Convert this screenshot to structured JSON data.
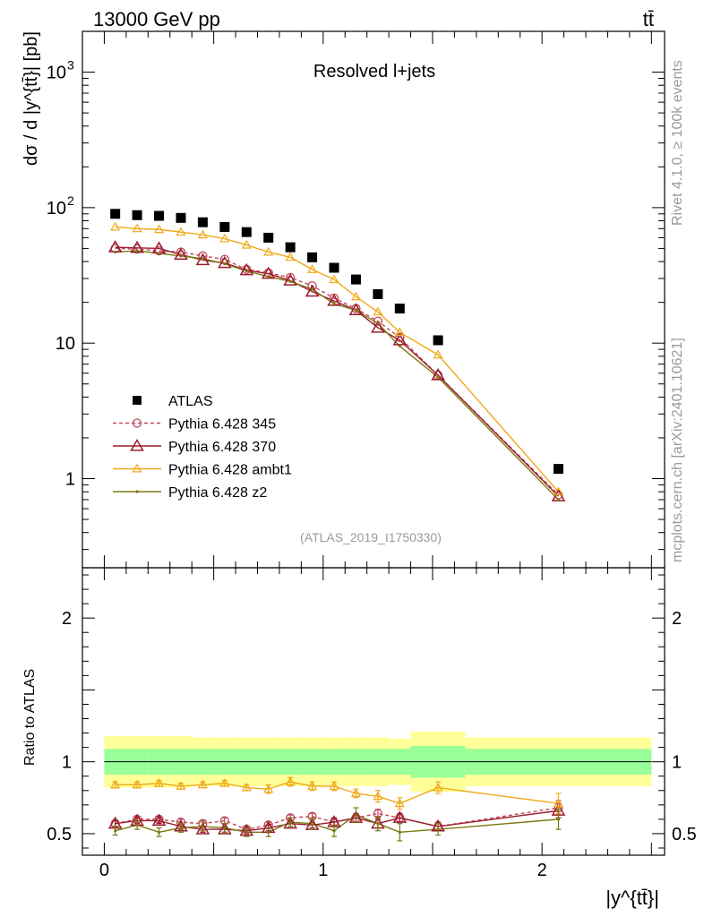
{
  "header": {
    "energy_label": "13000 GeV pp",
    "process_label": "tt̄"
  },
  "side": {
    "rivet_label": "Rivet 4.1.0, ≥ 100k events",
    "mcplots_label": "mcplots.cern.ch [arXiv:2401.10621]"
  },
  "colors": {
    "atlas": "#000000",
    "p345": "#c0485a",
    "p370": "#9a1c2e",
    "ambt1": "#f0a818",
    "z2": "#7a7a10",
    "band_yellow": "#ffff99",
    "band_green": "#99ff99"
  },
  "chart_data": {
    "type": "scatter",
    "title": "Resolved l+jets",
    "analysis_id": "(ATLAS_2019_I1750330)",
    "xlabel": "|y^{tt̄}|",
    "ylabel": "dσ / d |y^{tt̄}| [pb]",
    "ratio_ylabel": "Ratio to ATLAS",
    "xlim": [
      -0.1,
      2.56
    ],
    "ylim_main": [
      0.22,
      2000
    ],
    "ylim_ratio": [
      0.35,
      2.35
    ],
    "y_scale_main": "log",
    "x_ticks": [
      0,
      1,
      2
    ],
    "x_tick_labels": [
      "0",
      "1",
      "2"
    ],
    "main_y_tick_labels": [
      {
        "value": 1000,
        "base": "10",
        "exp": "3"
      },
      {
        "value": 100,
        "base": "10",
        "exp": "2"
      },
      {
        "value": 10,
        "text": "10"
      },
      {
        "value": 1,
        "text": "1"
      }
    ],
    "ratio_y_ticks": [
      0.5,
      1,
      2
    ],
    "ratio_y_tick_labels": [
      "0.5",
      "1",
      "2"
    ],
    "legend_position": "lower-left",
    "legend": [
      {
        "key": "atlas",
        "label": "ATLAS"
      },
      {
        "key": "p345",
        "label": "Pythia 6.428 345"
      },
      {
        "key": "p370",
        "label": "Pythia 6.428 370"
      },
      {
        "key": "ambt1",
        "label": "Pythia 6.428 ambt1"
      },
      {
        "key": "z2",
        "label": "Pythia 6.428 z2"
      }
    ],
    "bins": [
      [
        0,
        0.1
      ],
      [
        0.1,
        0.2
      ],
      [
        0.2,
        0.3
      ],
      [
        0.3,
        0.4
      ],
      [
        0.4,
        0.5
      ],
      [
        0.5,
        0.6
      ],
      [
        0.6,
        0.7
      ],
      [
        0.7,
        0.8
      ],
      [
        0.8,
        0.9
      ],
      [
        0.9,
        1.0
      ],
      [
        1.0,
        1.1
      ],
      [
        1.1,
        1.2
      ],
      [
        1.2,
        1.3
      ],
      [
        1.3,
        1.4
      ],
      [
        1.4,
        1.65
      ],
      [
        1.65,
        2.5
      ]
    ],
    "x": [
      0.05,
      0.15,
      0.25,
      0.35,
      0.45,
      0.55,
      0.65,
      0.75,
      0.85,
      0.95,
      1.05,
      1.15,
      1.25,
      1.35,
      1.525,
      2.075
    ],
    "atlas": [
      90,
      88,
      87,
      84,
      78,
      72,
      66,
      60,
      51,
      43,
      36,
      29.5,
      23,
      18,
      10.5,
      1.18
    ],
    "series": [
      {
        "key": "p345",
        "name": "Pythia 6.428 345",
        "marker": "open-circle",
        "dashed": true,
        "values": [
          50,
          49.5,
          48,
          47,
          44,
          41.5,
          35,
          33,
          30.5,
          26.5,
          21.5,
          18,
          14.5,
          11,
          5.8,
          0.76
        ],
        "ratio": [
          0.57,
          0.6,
          0.6,
          0.58,
          0.57,
          0.59,
          0.53,
          0.56,
          0.61,
          0.62,
          0.58,
          0.61,
          0.64,
          0.61,
          0.55,
          0.68
        ],
        "ratio_err": [
          0.02,
          0.02,
          0.02,
          0.02,
          0.02,
          0.02,
          0.02,
          0.02,
          0.02,
          0.02,
          0.03,
          0.03,
          0.03,
          0.03,
          0.03,
          0.05
        ]
      },
      {
        "key": "p370",
        "name": "Pythia 6.428 370",
        "marker": "open-triangle",
        "dashed": false,
        "values": [
          51,
          50.5,
          50,
          45,
          41,
          39,
          34.5,
          32.5,
          29,
          24,
          20.5,
          17.5,
          13,
          10.5,
          5.8,
          0.74
        ],
        "ratio": [
          0.57,
          0.59,
          0.59,
          0.55,
          0.53,
          0.53,
          0.52,
          0.54,
          0.57,
          0.56,
          0.58,
          0.61,
          0.57,
          0.61,
          0.55,
          0.66
        ],
        "ratio_err": [
          0.02,
          0.02,
          0.02,
          0.02,
          0.02,
          0.02,
          0.02,
          0.02,
          0.02,
          0.02,
          0.03,
          0.03,
          0.03,
          0.03,
          0.03,
          0.05
        ]
      },
      {
        "key": "ambt1",
        "name": "Pythia 6.428 ambt1",
        "marker": "open-triangle-small",
        "dashed": false,
        "values": [
          72,
          70,
          69,
          66,
          63,
          59,
          53,
          47,
          43,
          35,
          29.5,
          22,
          17,
          12,
          8.2,
          0.8
        ],
        "ratio": [
          0.84,
          0.84,
          0.85,
          0.83,
          0.84,
          0.85,
          0.82,
          0.81,
          0.86,
          0.83,
          0.83,
          0.78,
          0.76,
          0.71,
          0.82,
          0.71
        ],
        "ratio_err": [
          0.02,
          0.02,
          0.02,
          0.02,
          0.02,
          0.02,
          0.02,
          0.03,
          0.03,
          0.03,
          0.03,
          0.03,
          0.04,
          0.04,
          0.04,
          0.07
        ]
      },
      {
        "key": "z2",
        "name": "Pythia 6.428 z2",
        "marker": "dot",
        "dashed": false,
        "values": [
          47,
          48,
          46,
          44,
          42,
          38.5,
          34,
          31,
          28.5,
          25,
          19.5,
          17.5,
          14,
          9.5,
          5.6,
          0.7
        ],
        "ratio": [
          0.52,
          0.56,
          0.51,
          0.54,
          0.55,
          0.54,
          0.51,
          0.51,
          0.58,
          0.57,
          0.52,
          0.63,
          0.57,
          0.51,
          0.53,
          0.6
        ],
        "ratio_err": [
          0.03,
          0.03,
          0.03,
          0.03,
          0.03,
          0.03,
          0.03,
          0.03,
          0.03,
          0.04,
          0.04,
          0.05,
          0.05,
          0.06,
          0.04,
          0.07
        ]
      }
    ],
    "band_green": [
      0.09,
      0.09,
      0.09,
      0.09,
      0.09,
      0.09,
      0.09,
      0.09,
      0.09,
      0.09,
      0.09,
      0.09,
      0.09,
      0.09,
      0.11,
      0.09
    ],
    "band_yellow": [
      0.18,
      0.18,
      0.18,
      0.18,
      0.17,
      0.17,
      0.17,
      0.17,
      0.17,
      0.17,
      0.17,
      0.17,
      0.17,
      0.16,
      0.21,
      0.17
    ]
  }
}
